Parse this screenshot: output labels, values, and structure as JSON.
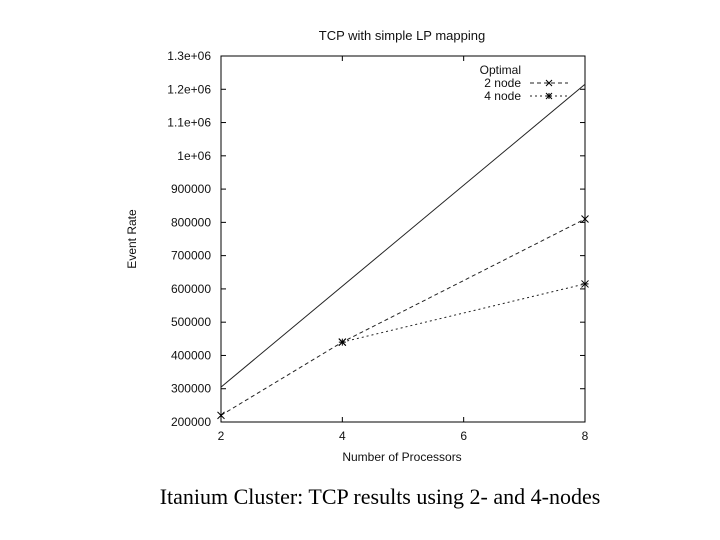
{
  "caption": "Itanium Cluster: TCP results using 2- and 4-nodes",
  "chart_data": {
    "type": "line",
    "title": "TCP with simple LP mapping",
    "xlabel": "Number of Processors",
    "ylabel": "Event Rate",
    "xlim": [
      2,
      8
    ],
    "ylim": [
      200000,
      1300000
    ],
    "xticks": [
      2,
      4,
      6,
      8
    ],
    "xtick_labels": [
      "2",
      "4",
      "6",
      "8"
    ],
    "yticks": [
      200000,
      300000,
      400000,
      500000,
      600000,
      700000,
      800000,
      900000,
      1000000,
      1100000,
      1200000,
      1300000
    ],
    "ytick_labels": [
      "200000",
      "300000",
      "400000",
      "500000",
      "600000",
      "700000",
      "800000",
      "900000",
      "1e+06",
      "1.1e+06",
      "1.2e+06",
      "1.3e+06"
    ],
    "legend_position": "top-right",
    "series": [
      {
        "name": "Optimal",
        "x": [
          2,
          8
        ],
        "y": [
          305000,
          1215000
        ],
        "marker": "none",
        "dash": "solid"
      },
      {
        "name": "2 node",
        "x": [
          2,
          4,
          8
        ],
        "y": [
          220000,
          440000,
          810000
        ],
        "marker": "x",
        "dash": "dashed"
      },
      {
        "name": "4 node",
        "x": [
          4,
          8
        ],
        "y": [
          440000,
          615000
        ],
        "marker": "star",
        "dash": "dotted"
      }
    ]
  }
}
